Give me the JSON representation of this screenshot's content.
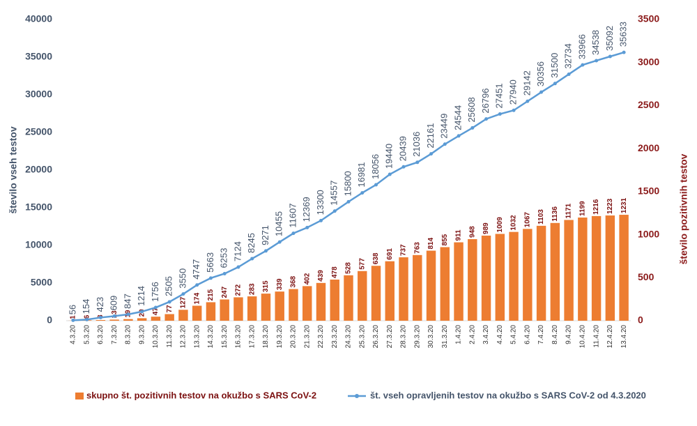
{
  "chart_data": {
    "type": "combo",
    "categories": [
      "4.3.20",
      "5.3.20",
      "6.3.20",
      "7.3.20",
      "8.3.20",
      "9.3.20",
      "10.3.20",
      "11.3.20",
      "12.3.20",
      "13.3.20",
      "14.3.20",
      "15.3.20",
      "16.3.20",
      "17.3.20",
      "18.3.20",
      "19.3.20",
      "20.3.20",
      "21.3.20",
      "22.3.20",
      "23.3.20",
      "24.3.20",
      "25.3.20",
      "26.3.20",
      "27.3.20",
      "28.3.20",
      "29.3.20",
      "30.3.20",
      "31.3.20",
      "1.4.20",
      "2.4.20",
      "3.4.20",
      "4.4.20",
      "5.4.20",
      "6.4.20",
      "7.4.20",
      "8.4.20",
      "9.4.20",
      "10.4.20",
      "11.4.20",
      "12.4.20",
      "13.4.20"
    ],
    "series": [
      {
        "name": "skupno št. pozitivnih testov na okužbo s SARS CoV-2",
        "type": "bar",
        "axis": "y2",
        "color": "#ed7d31",
        "values": [
          1,
          6,
          8,
          13,
          19,
          29,
          47,
          77,
          127,
          174,
          215,
          247,
          272,
          283,
          315,
          339,
          368,
          402,
          439,
          478,
          528,
          577,
          638,
          691,
          737,
          763,
          814,
          855,
          911,
          948,
          989,
          1009,
          1032,
          1067,
          1103,
          1136,
          1171,
          1199,
          1216,
          1223,
          1231
        ]
      },
      {
        "name": "št. vseh opravljenih testov na okužbo s SARS CoV-2 od 4.3.2020",
        "type": "line",
        "axis": "y",
        "color": "#5b9bd5",
        "values": [
          56,
          154,
          423,
          609,
          847,
          1214,
          1756,
          2505,
          3550,
          4747,
          5663,
          6253,
          7124,
          8245,
          9271,
          10455,
          11607,
          12369,
          13300,
          14557,
          15800,
          16981,
          18056,
          19440,
          20439,
          21036,
          22161,
          23449,
          24544,
          25608,
          26796,
          27451,
          27940,
          29142,
          30356,
          31500,
          32734,
          33966,
          34538,
          35092,
          35633
        ]
      }
    ],
    "ylabel": "število vseh testov",
    "y2label": "število pozitivnih testov",
    "ylim": [
      0,
      40000
    ],
    "yticks": [
      0,
      5000,
      10000,
      15000,
      20000,
      25000,
      30000,
      35000,
      40000
    ],
    "y2lim": [
      0,
      3500
    ],
    "y2ticks": [
      0,
      500,
      1000,
      1500,
      2000,
      2500,
      3000,
      3500
    ],
    "legend": "bottom"
  }
}
